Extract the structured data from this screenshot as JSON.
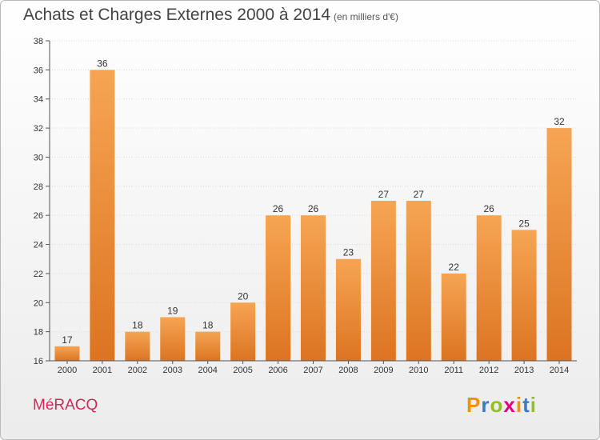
{
  "chart_data": {
    "type": "bar",
    "title": "Achats et Charges Externes 2000 à 2014",
    "subtitle": "(en milliers d'€)",
    "categories": [
      "2000",
      "2001",
      "2002",
      "2003",
      "2004",
      "2005",
      "2006",
      "2007",
      "2008",
      "2009",
      "2010",
      "2011",
      "2012",
      "2013",
      "2014"
    ],
    "values": [
      17,
      36,
      18,
      19,
      18,
      20,
      26,
      26,
      23,
      27,
      27,
      22,
      26,
      25,
      32
    ],
    "ylim": [
      16,
      38
    ],
    "yticks": [
      16,
      18,
      20,
      22,
      24,
      26,
      28,
      30,
      32,
      34,
      36,
      38
    ],
    "grid": true,
    "bar_color": "#f0923a",
    "xlabel": "",
    "ylabel": ""
  },
  "place_name": "MéRACQ",
  "logo": {
    "letters": [
      "P",
      "r",
      "o",
      "x",
      "i",
      "t",
      "i"
    ],
    "colors": [
      "#f39200",
      "#3b7cc1",
      "#93c01f",
      "#e3007e",
      "#f39200",
      "#3b7cc1",
      "#93c01f"
    ]
  }
}
